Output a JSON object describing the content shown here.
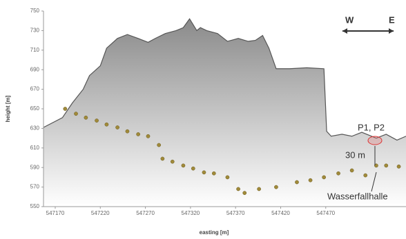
{
  "chart_data": {
    "type": "area",
    "x_label": "easting [m]",
    "y_label": "height [m]",
    "xlim": [
      547157,
      547559
    ],
    "xticks": [
      547170,
      547220,
      547270,
      547320,
      547370,
      547420,
      547470
    ],
    "ylim": [
      550,
      750
    ],
    "yticks": [
      550,
      570,
      590,
      610,
      630,
      650,
      670,
      690,
      710,
      730,
      750
    ],
    "series": [
      {
        "type": "area",
        "color": "#555555",
        "x": [
          547157,
          547178,
          547189,
          547201,
          547208,
          547220,
          547227,
          547239,
          547250,
          547262,
          547273,
          547281,
          547292,
          547304,
          547312,
          547319,
          547327,
          547331,
          547338,
          547350,
          547361,
          547373,
          547384,
          547392,
          547400,
          547407,
          547415,
          547430,
          547449,
          547468,
          547471,
          547476,
          547488,
          547499,
          547510,
          547526,
          547537,
          547549,
          547559
        ],
        "values": [
          631,
          641,
          656,
          670,
          684,
          694,
          712,
          722,
          726,
          722,
          718,
          722,
          727,
          730,
          733,
          742,
          730,
          733,
          730,
          727,
          719,
          722,
          719,
          720,
          725,
          712,
          691,
          691,
          692,
          691,
          627,
          622,
          624,
          622,
          626,
          620,
          624,
          618,
          622
        ]
      },
      {
        "type": "scatter",
        "color": "#a08a3a",
        "x": [
          547181,
          547193,
          547204,
          547216,
          547227,
          547239,
          547250,
          547262,
          547273,
          547285,
          547289,
          547300,
          547312,
          547323,
          547335,
          547346,
          547361,
          547373,
          547380,
          547396,
          547415,
          547438,
          547453,
          547468,
          547484,
          547499,
          547514,
          547526,
          547537,
          547551
        ],
        "values": [
          650,
          645,
          641,
          638,
          634,
          631,
          627,
          624,
          622,
          613,
          599,
          596,
          592,
          589,
          585,
          584,
          580,
          568,
          564,
          568,
          570,
          575,
          577,
          580,
          584,
          587,
          582,
          592,
          592,
          591
        ]
      }
    ],
    "annotations": [
      "W",
      "E",
      "P1, P2",
      "30 m",
      "Wasserfallhalle"
    ]
  }
}
